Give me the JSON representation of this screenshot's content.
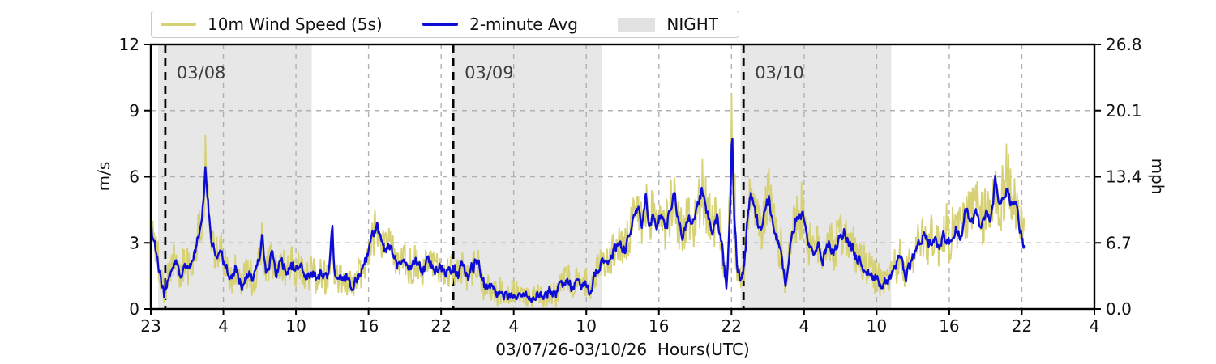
{
  "legend": {
    "raw_label": "10m Wind Speed (5s)",
    "avg_label": "2-minute Avg",
    "night_label": "NIGHT"
  },
  "axes": {
    "left_label": "m/s",
    "right_label": "mph",
    "x_label": "03/07/26-03/10/26  Hours(UTC)",
    "left_tick_labels": [
      "0",
      "3",
      "6",
      "9",
      "12"
    ],
    "left_tick_values": [
      0,
      3,
      6,
      9,
      12
    ],
    "right_tick_labels": [
      "0.0",
      "6.7",
      "13.4",
      "20.1",
      "26.8"
    ],
    "x_tick_labels": [
      "23",
      "4",
      "10",
      "16",
      "22",
      "4",
      "10",
      "16",
      "22",
      "4",
      "10",
      "16",
      "22",
      "4"
    ]
  },
  "colors": {
    "raw": "#d7d176",
    "avg": "#0d0dd6",
    "night": "#e7e7e7",
    "grid": "#b0b0b0",
    "midnight_line": "#000000",
    "day_label": "#3d3d3d",
    "spine": "#000000"
  },
  "chart_data": {
    "type": "line",
    "title": "",
    "xlabel": "03/07/26-03/10/26  Hours(UTC)",
    "ylabel_left": "m/s",
    "ylabel_right": "mph",
    "ylim": [
      0,
      12
    ],
    "y2lim": [
      0,
      26.8
    ],
    "x_unit": "hours since start (first tick 23:00 UTC 03/07, ticks every 6 h)",
    "x_tick_hours": [
      0,
      6,
      12,
      18,
      24,
      30,
      36,
      42,
      48,
      54,
      60,
      66,
      72,
      78
    ],
    "x_tick_labels": [
      "23",
      "4",
      "10",
      "16",
      "22",
      "4",
      "10",
      "16",
      "22",
      "4",
      "10",
      "16",
      "22",
      "4"
    ],
    "grid": true,
    "legend_position": "top",
    "night_bands_h": [
      [
        0.6,
        13.3
      ],
      [
        24.9,
        37.3
      ],
      [
        48.75,
        61.2
      ]
    ],
    "midnight_lines": [
      {
        "label": "03/08",
        "h": 1.2
      },
      {
        "label": "03/09",
        "h": 25.0
      },
      {
        "label": "03/10",
        "h": 49.0
      }
    ],
    "series_meta": [
      {
        "name": "10m Wind Speed (5s)",
        "style": "noisy envelope, khaki"
      },
      {
        "name": "2-minute Avg",
        "style": "line, blue"
      }
    ],
    "points_format": [
      "hour",
      "avg_ms",
      "raw_lo_ms",
      "raw_hi_ms"
    ],
    "points": [
      [
        0.0,
        3.8,
        3.0,
        5.9
      ],
      [
        0.2,
        2.8,
        1.8,
        4.2
      ],
      [
        0.5,
        2.6,
        1.7,
        3.6
      ],
      [
        0.8,
        1.2,
        0.5,
        2.2
      ],
      [
        1.1,
        0.6,
        0.1,
        1.3
      ],
      [
        1.5,
        1.5,
        0.8,
        2.4
      ],
      [
        2.0,
        2.2,
        1.4,
        3.1
      ],
      [
        2.4,
        1.6,
        0.9,
        2.5
      ],
      [
        2.8,
        2.1,
        1.3,
        3.0
      ],
      [
        3.2,
        1.7,
        0.9,
        2.7
      ],
      [
        3.6,
        2.5,
        1.6,
        3.4
      ],
      [
        4.0,
        3.4,
        2.4,
        4.6
      ],
      [
        4.3,
        4.6,
        3.4,
        6.2
      ],
      [
        4.5,
        6.3,
        4.6,
        8.1
      ],
      [
        4.7,
        4.9,
        3.6,
        6.6
      ],
      [
        5.0,
        3.1,
        2.2,
        4.4
      ],
      [
        5.4,
        2.4,
        1.5,
        3.3
      ],
      [
        5.8,
        2.7,
        1.8,
        3.6
      ],
      [
        6.2,
        1.9,
        1.1,
        2.8
      ],
      [
        6.6,
        1.4,
        0.6,
        2.2
      ],
      [
        7.0,
        1.8,
        1.0,
        2.6
      ],
      [
        7.5,
        1.1,
        0.4,
        1.9
      ],
      [
        8.0,
        1.6,
        0.8,
        2.5
      ],
      [
        8.5,
        1.3,
        0.5,
        2.1
      ],
      [
        9.0,
        2.4,
        1.5,
        3.3
      ],
      [
        9.2,
        3.3,
        2.2,
        4.1
      ],
      [
        9.5,
        1.8,
        1.0,
        2.7
      ],
      [
        10.0,
        2.3,
        1.4,
        3.2
      ],
      [
        10.4,
        1.6,
        0.8,
        2.4
      ],
      [
        10.8,
        2.2,
        1.3,
        3.1
      ],
      [
        11.2,
        1.7,
        0.9,
        2.6
      ],
      [
        11.6,
        2.0,
        1.1,
        2.9
      ],
      [
        12.0,
        1.6,
        0.8,
        2.5
      ],
      [
        12.4,
        2.1,
        1.2,
        3.0
      ],
      [
        12.8,
        1.5,
        0.7,
        2.3
      ],
      [
        13.3,
        1.8,
        0.9,
        2.7
      ],
      [
        13.7,
        1.3,
        0.5,
        2.1
      ],
      [
        14.2,
        1.7,
        0.9,
        2.5
      ],
      [
        14.6,
        1.2,
        0.4,
        2.0
      ],
      [
        15.0,
        3.9,
        2.6,
        4.4
      ],
      [
        15.2,
        1.6,
        0.8,
        2.4
      ],
      [
        15.6,
        1.2,
        0.5,
        2.0
      ],
      [
        16.0,
        1.5,
        0.7,
        2.3
      ],
      [
        16.5,
        1.0,
        0.3,
        1.8
      ],
      [
        17.0,
        1.4,
        0.6,
        2.2
      ],
      [
        17.5,
        1.8,
        1.0,
        2.7
      ],
      [
        18.0,
        2.6,
        1.7,
        3.6
      ],
      [
        18.4,
        3.4,
        2.4,
        4.4
      ],
      [
        18.7,
        3.9,
        2.8,
        4.7
      ],
      [
        19.0,
        3.2,
        2.2,
        4.2
      ],
      [
        19.4,
        2.6,
        1.7,
        3.5
      ],
      [
        19.8,
        2.9,
        2.0,
        3.9
      ],
      [
        20.2,
        2.2,
        1.3,
        3.1
      ],
      [
        20.6,
        1.7,
        0.9,
        2.6
      ],
      [
        21.0,
        2.4,
        1.5,
        3.3
      ],
      [
        21.5,
        1.8,
        0.9,
        2.7
      ],
      [
        22.0,
        2.1,
        1.2,
        3.0
      ],
      [
        22.5,
        1.6,
        0.8,
        2.4
      ],
      [
        23.0,
        2.2,
        1.3,
        3.1
      ],
      [
        23.5,
        1.8,
        1.0,
        2.6
      ],
      [
        24.0,
        2.0,
        1.2,
        2.9
      ],
      [
        24.5,
        1.7,
        0.9,
        2.5
      ],
      [
        25.0,
        1.9,
        1.1,
        2.8
      ],
      [
        25.4,
        1.5,
        0.7,
        2.3
      ],
      [
        25.8,
        2.0,
        1.1,
        2.8
      ],
      [
        26.2,
        1.4,
        0.6,
        2.2
      ],
      [
        26.6,
        1.9,
        1.0,
        2.7
      ],
      [
        27.0,
        2.3,
        1.4,
        3.1
      ],
      [
        27.4,
        1.2,
        0.4,
        1.9
      ],
      [
        27.8,
        0.8,
        0.2,
        1.5
      ],
      [
        28.2,
        1.1,
        0.3,
        1.8
      ],
      [
        28.6,
        0.6,
        0.1,
        1.2
      ],
      [
        29.0,
        0.9,
        0.2,
        1.6
      ],
      [
        29.5,
        0.5,
        0.05,
        1.1
      ],
      [
        30.0,
        0.8,
        0.15,
        1.5
      ],
      [
        30.5,
        0.5,
        0.05,
        1.0
      ],
      [
        31.0,
        0.7,
        0.1,
        1.3
      ],
      [
        31.5,
        0.4,
        0.05,
        0.9
      ],
      [
        32.0,
        0.8,
        0.2,
        1.4
      ],
      [
        32.5,
        0.5,
        0.05,
        1.0
      ],
      [
        33.0,
        0.9,
        0.2,
        1.6
      ],
      [
        33.5,
        0.7,
        0.1,
        1.3
      ],
      [
        34.0,
        1.2,
        0.5,
        1.9
      ],
      [
        34.4,
        1.5,
        0.8,
        2.2
      ],
      [
        34.8,
        1.0,
        0.3,
        1.7
      ],
      [
        35.2,
        1.4,
        0.7,
        2.1
      ],
      [
        35.6,
        0.9,
        0.3,
        1.6
      ],
      [
        36.0,
        1.3,
        0.6,
        2.0
      ],
      [
        36.3,
        0.7,
        0.2,
        1.3
      ],
      [
        36.7,
        1.6,
        0.9,
        2.3
      ],
      [
        37.1,
        2.0,
        1.2,
        2.8
      ],
      [
        37.5,
        2.4,
        1.5,
        3.2
      ],
      [
        37.9,
        2.1,
        1.2,
        2.9
      ],
      [
        38.3,
        2.7,
        1.8,
        3.6
      ],
      [
        38.8,
        3.0,
        2.0,
        4.0
      ],
      [
        39.2,
        2.6,
        1.6,
        3.7
      ],
      [
        39.6,
        3.4,
        2.3,
        4.5
      ],
      [
        40.0,
        4.1,
        2.9,
        5.3
      ],
      [
        40.3,
        4.7,
        3.4,
        5.8
      ],
      [
        40.6,
        3.6,
        2.5,
        4.9
      ],
      [
        40.9,
        5.1,
        3.8,
        6.0
      ],
      [
        41.2,
        3.4,
        2.4,
        4.8
      ],
      [
        41.5,
        4.2,
        3.0,
        6.3
      ],
      [
        41.8,
        3.8,
        2.7,
        5.2
      ],
      [
        42.2,
        4.4,
        3.2,
        5.6
      ],
      [
        42.6,
        3.6,
        2.4,
        5.0
      ],
      [
        43.0,
        4.8,
        3.5,
        6.0
      ],
      [
        43.3,
        5.2,
        3.9,
        6.2
      ],
      [
        43.6,
        3.9,
        2.7,
        5.3
      ],
      [
        44.0,
        3.3,
        2.2,
        4.6
      ],
      [
        44.4,
        4.2,
        3.0,
        5.5
      ],
      [
        44.8,
        3.7,
        2.5,
        5.0
      ],
      [
        45.2,
        4.6,
        3.3,
        5.9
      ],
      [
        45.6,
        5.4,
        4.0,
        6.9
      ],
      [
        46.0,
        4.4,
        3.2,
        5.7
      ],
      [
        46.4,
        3.6,
        2.5,
        4.9
      ],
      [
        46.8,
        4.1,
        2.9,
        5.3
      ],
      [
        47.2,
        2.8,
        1.8,
        4.0
      ],
      [
        47.6,
        0.9,
        0.2,
        1.8
      ],
      [
        47.9,
        4.5,
        3.0,
        7.0
      ],
      [
        48.05,
        8.0,
        6.0,
        11.3
      ],
      [
        48.2,
        4.5,
        2.5,
        7.5
      ],
      [
        48.5,
        1.8,
        0.8,
        3.0
      ],
      [
        48.75,
        1.1,
        0.4,
        1.9
      ],
      [
        49.0,
        1.6,
        0.8,
        2.6
      ],
      [
        49.3,
        3.8,
        2.6,
        5.0
      ],
      [
        49.6,
        5.3,
        3.9,
        6.4
      ],
      [
        50.0,
        4.2,
        3.0,
        5.5
      ],
      [
        50.4,
        3.4,
        2.3,
        4.7
      ],
      [
        50.8,
        4.6,
        3.3,
        5.8
      ],
      [
        51.1,
        4.9,
        3.6,
        6.6
      ],
      [
        51.5,
        3.6,
        2.4,
        4.9
      ],
      [
        52.0,
        2.8,
        1.8,
        4.0
      ],
      [
        52.5,
        1.2,
        0.4,
        2.2
      ],
      [
        52.9,
        3.2,
        2.1,
        4.4
      ],
      [
        53.3,
        4.0,
        2.8,
        5.0
      ],
      [
        53.9,
        4.3,
        3.0,
        6.6
      ],
      [
        54.3,
        3.0,
        2.0,
        4.2
      ],
      [
        54.8,
        2.4,
        1.5,
        3.5
      ],
      [
        55.2,
        2.9,
        1.9,
        4.0
      ],
      [
        55.6,
        2.3,
        1.4,
        3.4
      ],
      [
        56.0,
        3.1,
        2.0,
        5.1
      ],
      [
        56.5,
        2.6,
        1.6,
        3.7
      ],
      [
        57.0,
        3.3,
        2.2,
        4.6
      ],
      [
        57.3,
        3.6,
        2.4,
        5.2
      ],
      [
        57.7,
        2.9,
        1.9,
        4.1
      ],
      [
        58.2,
        2.5,
        1.5,
        3.6
      ],
      [
        58.6,
        2.2,
        1.3,
        3.2
      ],
      [
        59.0,
        1.9,
        1.0,
        2.9
      ],
      [
        59.5,
        1.6,
        0.8,
        2.5
      ],
      [
        60.0,
        1.4,
        0.6,
        2.2
      ],
      [
        60.5,
        1.1,
        0.4,
        1.9
      ],
      [
        61.0,
        1.5,
        0.7,
        2.3
      ],
      [
        61.5,
        1.9,
        1.0,
        2.8
      ],
      [
        62.0,
        2.3,
        1.4,
        3.3
      ],
      [
        62.4,
        1.4,
        0.6,
        2.3
      ],
      [
        62.8,
        2.1,
        1.2,
        3.1
      ],
      [
        63.2,
        2.7,
        1.7,
        3.8
      ],
      [
        63.6,
        3.1,
        2.0,
        4.3
      ],
      [
        63.9,
        3.5,
        2.4,
        4.6
      ],
      [
        64.3,
        2.9,
        1.9,
        4.1
      ],
      [
        64.7,
        3.3,
        2.2,
        4.5
      ],
      [
        65.1,
        2.8,
        1.8,
        4.0
      ],
      [
        65.5,
        3.4,
        2.3,
        4.7
      ],
      [
        66.0,
        3.1,
        2.0,
        4.9
      ],
      [
        66.5,
        3.7,
        2.5,
        5.0
      ],
      [
        67.0,
        3.3,
        2.2,
        4.8
      ],
      [
        67.4,
        4.6,
        3.3,
        5.9
      ],
      [
        67.8,
        3.9,
        2.7,
        5.4
      ],
      [
        68.2,
        4.3,
        3.0,
        6.5
      ],
      [
        68.6,
        3.6,
        2.4,
        5.2
      ],
      [
        69.0,
        4.4,
        3.1,
        5.8
      ],
      [
        69.4,
        3.8,
        2.6,
        5.5
      ],
      [
        69.8,
        5.9,
        4.3,
        6.9
      ],
      [
        70.2,
        4.6,
        3.3,
        6.2
      ],
      [
        70.5,
        5.2,
        3.8,
        7.0
      ],
      [
        70.8,
        5.5,
        4.0,
        8.5
      ],
      [
        71.1,
        4.7,
        3.4,
        6.3
      ],
      [
        71.4,
        5.1,
        3.7,
        6.6
      ],
      [
        71.7,
        4.2,
        2.9,
        5.6
      ],
      [
        72.0,
        3.3,
        2.2,
        4.6
      ],
      [
        72.3,
        2.6,
        1.7,
        3.8
      ]
    ]
  }
}
